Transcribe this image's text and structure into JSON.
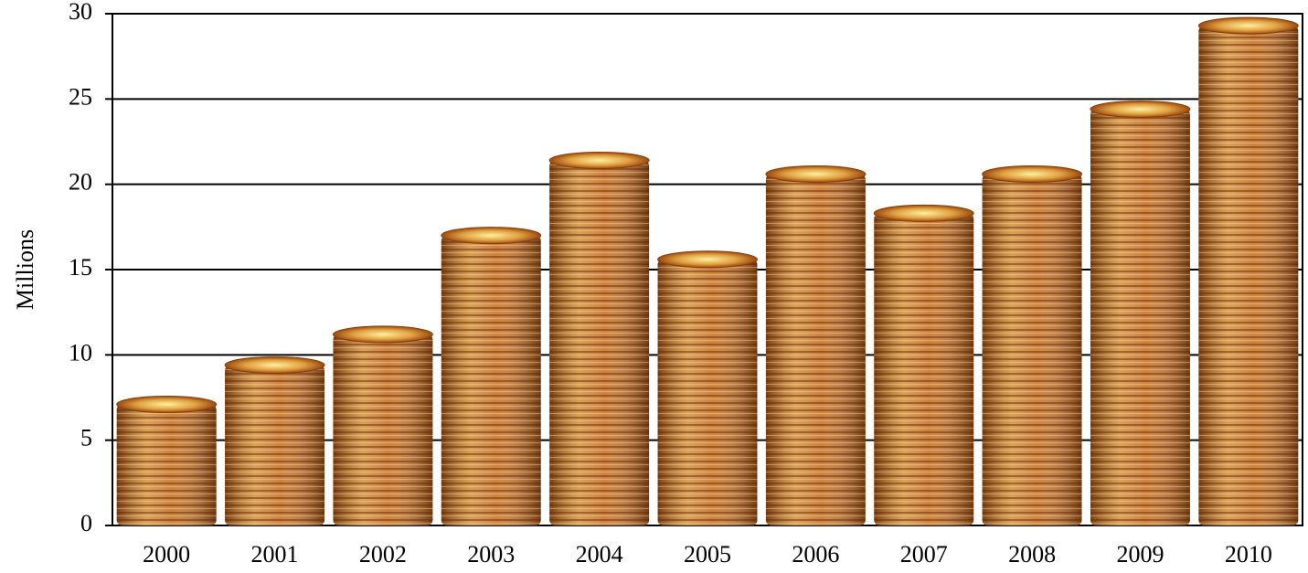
{
  "chart_data": {
    "type": "bar",
    "y_label": "Millions",
    "categories": [
      "2000",
      "2001",
      "2002",
      "2003",
      "2004",
      "2005",
      "2006",
      "2007",
      "2008",
      "2009",
      "2010"
    ],
    "values": [
      7.1,
      9.4,
      11.2,
      17,
      21.4,
      15.6,
      20.6,
      18.3,
      20.6,
      24.4,
      29.3
    ],
    "color": "#c8742a",
    "ylim": [
      0,
      30
    ],
    "yticks": [
      0,
      5,
      10,
      15,
      20,
      25,
      30
    ],
    "grid": true
  }
}
